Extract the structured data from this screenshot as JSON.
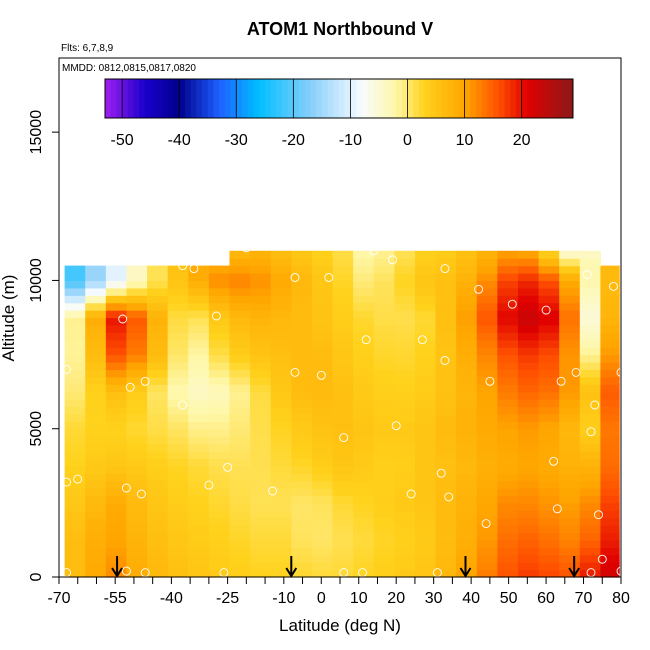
{
  "chart_data": {
    "type": "heatmap",
    "title": "ATOM1 Northbound V",
    "xlabel": "Latitude (deg N)",
    "ylabel": "Altitude (m)",
    "notes": [
      "Flts: 6,7,8,9",
      "MMDD: 0812,0815,0817,0820"
    ],
    "xlim": [
      -70,
      80
    ],
    "ylim": [
      0,
      17500
    ],
    "x_ticks": [
      -70,
      -55,
      -40,
      -25,
      -10,
      0,
      10,
      20,
      30,
      40,
      50,
      60,
      70,
      80
    ],
    "y_ticks": [
      0,
      5000,
      10000,
      15000
    ],
    "colorbar": {
      "ticks": [
        -50,
        -40,
        -30,
        -20,
        -10,
        0,
        10,
        20
      ],
      "range": [
        -53,
        29
      ],
      "stops": [
        {
          "v": -53,
          "c": "#a020f0"
        },
        {
          "v": -46,
          "c": "#1a00cc"
        },
        {
          "v": -40,
          "c": "#00008b"
        },
        {
          "v": -33,
          "c": "#1e60ff"
        },
        {
          "v": -26,
          "c": "#00bfff"
        },
        {
          "v": -17,
          "c": "#87cefa"
        },
        {
          "v": -8,
          "c": "#f8fbff"
        },
        {
          "v": -2,
          "c": "#fff7a8"
        },
        {
          "v": 3,
          "c": "#ffd21c"
        },
        {
          "v": 10,
          "c": "#ffa500"
        },
        {
          "v": 16,
          "c": "#ff5000"
        },
        {
          "v": 21,
          "c": "#e00000"
        },
        {
          "v": 29,
          "c": "#8b1a1a"
        }
      ]
    },
    "field": {
      "x": [
        -70,
        -62.5,
        -55,
        -47.5,
        -40,
        -32.5,
        -25,
        -17.5,
        -10,
        -2.5,
        5,
        12.5,
        20,
        27.5,
        35,
        42.5,
        50,
        57.5,
        65,
        72.5,
        80
      ],
      "y": [
        0,
        1250,
        2500,
        3750,
        5000,
        6250,
        7500,
        8750,
        10000,
        11000
      ],
      "values": [
        [
          4,
          8,
          12,
          8,
          6,
          5,
          4,
          3,
          3,
          2,
          2,
          3,
          4,
          5,
          8,
          12,
          16,
          18,
          15,
          20,
          24
        ],
        [
          4,
          8,
          10,
          7,
          5,
          4,
          3,
          2,
          2,
          0,
          1,
          2,
          3,
          4,
          7,
          10,
          14,
          15,
          12,
          15,
          22
        ],
        [
          3,
          6,
          9,
          6,
          4,
          3,
          2,
          1,
          1,
          0,
          2,
          3,
          4,
          5,
          7,
          9,
          12,
          12,
          10,
          12,
          20
        ],
        [
          2,
          4,
          5,
          4,
          3,
          2,
          1,
          1,
          2,
          3,
          5,
          4,
          3,
          5,
          6,
          8,
          9,
          10,
          8,
          8,
          18
        ],
        [
          1,
          3,
          3,
          2,
          1,
          -1,
          -1,
          1,
          3,
          5,
          6,
          5,
          4,
          5,
          7,
          9,
          10,
          11,
          8,
          3,
          20
        ],
        [
          -3,
          2,
          6,
          3,
          -2,
          -4,
          -3,
          1,
          5,
          7,
          6,
          4,
          3,
          4,
          6,
          9,
          13,
          15,
          12,
          5,
          22
        ],
        [
          -6,
          2,
          16,
          12,
          1,
          -2,
          3,
          5,
          6,
          7,
          5,
          3,
          2,
          3,
          6,
          11,
          16,
          18,
          14,
          -3,
          20
        ],
        [
          -8,
          4,
          20,
          14,
          2,
          1,
          6,
          8,
          7,
          6,
          4,
          2,
          1,
          2,
          7,
          14,
          21,
          24,
          18,
          -8,
          18
        ],
        [
          -26,
          -18,
          -10,
          -2,
          4,
          9,
          13,
          12,
          9,
          6,
          3,
          -1,
          2,
          5,
          6,
          10,
          17,
          19,
          12,
          -4,
          14
        ],
        [
          null,
          null,
          null,
          null,
          null,
          null,
          6,
          8,
          6,
          4,
          2,
          -3,
          0,
          3,
          4,
          7,
          10,
          9,
          -6,
          null,
          null
        ]
      ]
    },
    "field_extent": {
      "x": [
        -68.5,
        79.5
      ],
      "y": [
        0,
        11000
      ]
    },
    "observation_points": [
      {
        "lat": -68,
        "alt": 11000
      },
      {
        "lat": -68,
        "alt": 7000
      },
      {
        "lat": -68,
        "alt": 3200
      },
      {
        "lat": -68,
        "alt": 150
      },
      {
        "lat": -65,
        "alt": 3300
      },
      {
        "lat": -53,
        "alt": 8700
      },
      {
        "lat": -51,
        "alt": 6400
      },
      {
        "lat": -47,
        "alt": 6600
      },
      {
        "lat": -48,
        "alt": 2800
      },
      {
        "lat": -52,
        "alt": 3000
      },
      {
        "lat": -52,
        "alt": 200
      },
      {
        "lat": -47,
        "alt": 150
      },
      {
        "lat": -37,
        "alt": 10500
      },
      {
        "lat": -34,
        "alt": 10400
      },
      {
        "lat": -37,
        "alt": 5800
      },
      {
        "lat": -30,
        "alt": 3100
      },
      {
        "lat": -28,
        "alt": 8800
      },
      {
        "lat": -25,
        "alt": 3700
      },
      {
        "lat": -26,
        "alt": 150
      },
      {
        "lat": -20,
        "alt": 11100
      },
      {
        "lat": -17,
        "alt": 11300
      },
      {
        "lat": -13,
        "alt": 2900
      },
      {
        "lat": -7,
        "alt": 6900
      },
      {
        "lat": -7,
        "alt": 10100
      },
      {
        "lat": 0,
        "alt": 6800
      },
      {
        "lat": 2,
        "alt": 10100
      },
      {
        "lat": 6,
        "alt": 4700
      },
      {
        "lat": 6,
        "alt": 150
      },
      {
        "lat": 11,
        "alt": 150
      },
      {
        "lat": 12,
        "alt": 8000
      },
      {
        "lat": 14,
        "alt": 11000
      },
      {
        "lat": 19,
        "alt": 10700
      },
      {
        "lat": 20,
        "alt": 5100
      },
      {
        "lat": 24,
        "alt": 2800
      },
      {
        "lat": 27,
        "alt": 8000
      },
      {
        "lat": 32,
        "alt": 3500
      },
      {
        "lat": 33,
        "alt": 7300
      },
      {
        "lat": 33,
        "alt": 10400
      },
      {
        "lat": 31,
        "alt": 150
      },
      {
        "lat": 34,
        "alt": 2700
      },
      {
        "lat": 42,
        "alt": 9700
      },
      {
        "lat": 44,
        "alt": 1800
      },
      {
        "lat": 45,
        "alt": 6600
      },
      {
        "lat": 51,
        "alt": 9200
      },
      {
        "lat": 60,
        "alt": 9000
      },
      {
        "lat": 62,
        "alt": 3900
      },
      {
        "lat": 63,
        "alt": 2300
      },
      {
        "lat": 64,
        "alt": 6600
      },
      {
        "lat": 68,
        "alt": 6900
      },
      {
        "lat": 71,
        "alt": 10200
      },
      {
        "lat": 72,
        "alt": 4900
      },
      {
        "lat": 73,
        "alt": 5800
      },
      {
        "lat": 74,
        "alt": 2100
      },
      {
        "lat": 75,
        "alt": 600
      },
      {
        "lat": 78,
        "alt": 9800
      },
      {
        "lat": 80,
        "alt": 6900
      },
      {
        "lat": 80,
        "alt": 200
      },
      {
        "lat": 72,
        "alt": 150
      }
    ],
    "arrows_at_lat": [
      -54.5,
      -8,
      38.5,
      67.5
    ]
  }
}
